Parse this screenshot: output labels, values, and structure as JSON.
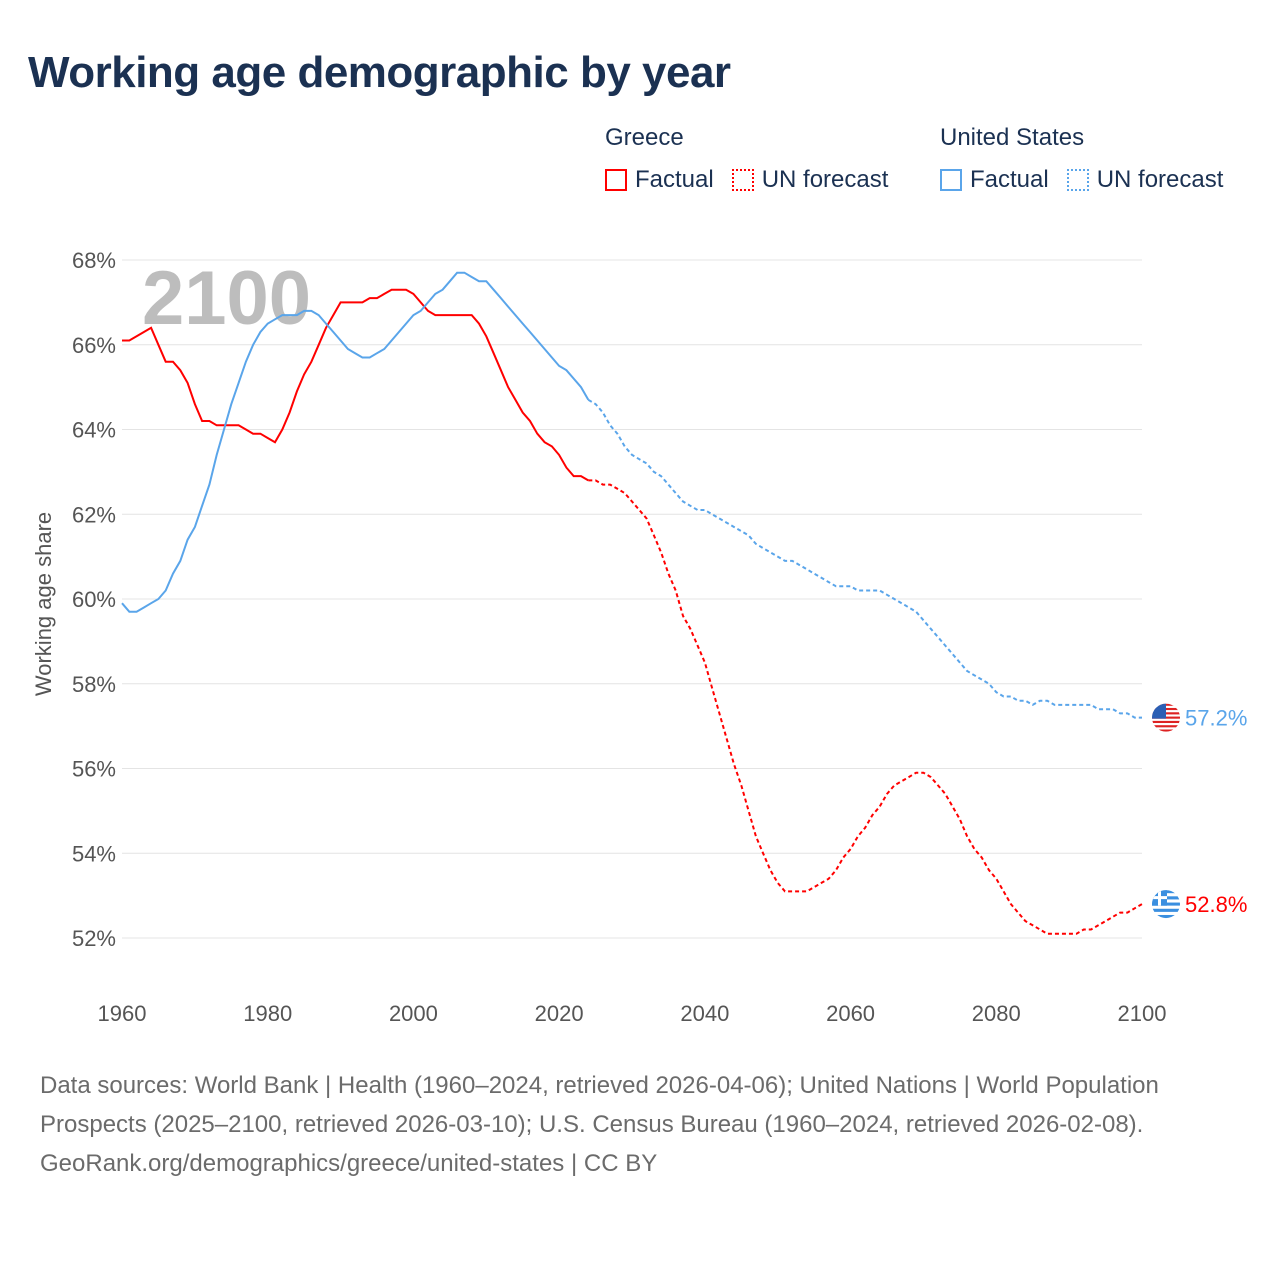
{
  "title": "Working age demographic by year",
  "legend": {
    "groups": [
      {
        "name": "Greece",
        "color": "#ff0000",
        "factual": "Factual",
        "forecast": "UN forecast"
      },
      {
        "name": "United States",
        "color": "#5aa5ea",
        "factual": "Factual",
        "forecast": "UN forecast"
      }
    ]
  },
  "watermark_year": "2100",
  "footer": {
    "sources": "Data sources: World Bank | Health (1960–2024, retrieved 2026-04-06); United Nations | World Population Prospects (2025–2100, retrieved 2026-03-10); U.S. Census Bureau (1960–2024, retrieved 2026-02-08).",
    "credit": "GeoRank.org/demographics/greece/united-states | CC BY"
  },
  "chart_data": {
    "type": "line",
    "title": "Working age demographic by year",
    "xlabel": "",
    "ylabel": "Working age share",
    "xlim": [
      1960,
      2100
    ],
    "ylim": [
      51,
      68.5
    ],
    "x_ticks": [
      1960,
      1980,
      2000,
      2020,
      2040,
      2060,
      2080,
      2100
    ],
    "x_tick_labels": [
      "1960",
      "1980",
      "2000",
      "2020",
      "2040",
      "2060",
      "2080",
      "2100"
    ],
    "y_ticks": [
      52,
      54,
      56,
      58,
      60,
      62,
      64,
      66,
      68
    ],
    "y_tick_labels": [
      "52%",
      "54%",
      "56%",
      "58%",
      "60%",
      "62%",
      "64%",
      "66%",
      "68%"
    ],
    "grid": true,
    "legend_position": "top-right",
    "x_start": 1960,
    "forecast_start": 2024,
    "series": [
      {
        "name": "Greece",
        "color": "#ff0000",
        "end_label": "52.8%",
        "values": [
          66.1,
          66.1,
          66.2,
          66.3,
          66.4,
          66.0,
          65.6,
          65.6,
          65.4,
          65.1,
          64.6,
          64.2,
          64.2,
          64.1,
          64.1,
          64.1,
          64.1,
          64.0,
          63.9,
          63.9,
          63.8,
          63.7,
          64.0,
          64.4,
          64.9,
          65.3,
          65.6,
          66.0,
          66.4,
          66.7,
          67.0,
          67.0,
          67.0,
          67.0,
          67.1,
          67.1,
          67.2,
          67.3,
          67.3,
          67.3,
          67.2,
          67.0,
          66.8,
          66.7,
          66.7,
          66.7,
          66.7,
          66.7,
          66.7,
          66.5,
          66.2,
          65.8,
          65.4,
          65.0,
          64.7,
          64.4,
          64.2,
          63.9,
          63.7,
          63.6,
          63.4,
          63.1,
          62.9,
          62.9,
          62.8,
          62.8,
          62.7,
          62.7,
          62.6,
          62.5,
          62.3,
          62.1,
          61.9,
          61.5,
          61.1,
          60.6,
          60.2,
          59.6,
          59.3,
          58.9,
          58.5,
          57.9,
          57.3,
          56.7,
          56.1,
          55.6,
          55.0,
          54.4,
          54.0,
          53.6,
          53.3,
          53.1,
          53.1,
          53.1,
          53.1,
          53.2,
          53.3,
          53.4,
          53.6,
          53.9,
          54.1,
          54.4,
          54.6,
          54.9,
          55.1,
          55.4,
          55.6,
          55.7,
          55.8,
          55.9,
          55.9,
          55.8,
          55.6,
          55.4,
          55.1,
          54.8,
          54.4,
          54.1,
          53.9,
          53.6,
          53.4,
          53.1,
          52.8,
          52.6,
          52.4,
          52.3,
          52.2,
          52.1,
          52.1,
          52.1,
          52.1,
          52.1,
          52.2,
          52.2,
          52.3,
          52.4,
          52.5,
          52.6,
          52.6,
          52.7,
          52.8
        ]
      },
      {
        "name": "United States",
        "color": "#5aa5ea",
        "end_label": "57.2%",
        "values": [
          59.9,
          59.7,
          59.7,
          59.8,
          59.9,
          60.0,
          60.2,
          60.6,
          60.9,
          61.4,
          61.7,
          62.2,
          62.7,
          63.4,
          64.0,
          64.6,
          65.1,
          65.6,
          66.0,
          66.3,
          66.5,
          66.6,
          66.7,
          66.7,
          66.7,
          66.8,
          66.8,
          66.7,
          66.5,
          66.3,
          66.1,
          65.9,
          65.8,
          65.7,
          65.7,
          65.8,
          65.9,
          66.1,
          66.3,
          66.5,
          66.7,
          66.8,
          67.0,
          67.2,
          67.3,
          67.5,
          67.7,
          67.7,
          67.6,
          67.5,
          67.5,
          67.3,
          67.1,
          66.9,
          66.7,
          66.5,
          66.3,
          66.1,
          65.9,
          65.7,
          65.5,
          65.4,
          65.2,
          65.0,
          64.7,
          64.6,
          64.4,
          64.1,
          63.9,
          63.6,
          63.4,
          63.3,
          63.2,
          63.0,
          62.9,
          62.7,
          62.5,
          62.3,
          62.2,
          62.1,
          62.1,
          62.0,
          61.9,
          61.8,
          61.7,
          61.6,
          61.5,
          61.3,
          61.2,
          61.1,
          61.0,
          60.9,
          60.9,
          60.8,
          60.7,
          60.6,
          60.5,
          60.4,
          60.3,
          60.3,
          60.3,
          60.2,
          60.2,
          60.2,
          60.2,
          60.1,
          60.0,
          59.9,
          59.8,
          59.7,
          59.5,
          59.3,
          59.1,
          58.9,
          58.7,
          58.5,
          58.3,
          58.2,
          58.1,
          58.0,
          57.8,
          57.7,
          57.7,
          57.6,
          57.6,
          57.5,
          57.6,
          57.6,
          57.5,
          57.5,
          57.5,
          57.5,
          57.5,
          57.5,
          57.4,
          57.4,
          57.4,
          57.3,
          57.3,
          57.2,
          57.2
        ]
      }
    ]
  }
}
